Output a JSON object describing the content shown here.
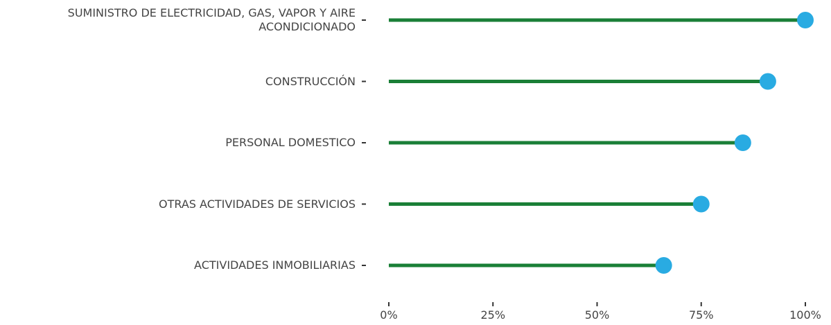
{
  "chart_data": {
    "type": "lollipop",
    "categories": [
      "SUMINISTRO DE ELECTRICIDAD, GAS, VAPOR Y AIRE\nACONDICIONADO",
      "CONSTRUCCIÓN",
      "PERSONAL DOMESTICO",
      "OTRAS ACTIVIDADES DE SERVICIOS",
      "ACTIVIDADES INMOBILIARIAS"
    ],
    "values": [
      100,
      91,
      85,
      75,
      66
    ],
    "color": "#1a7f37",
    "point_color": "#29abe2",
    "xlim": [
      0,
      100
    ],
    "xticks": [
      {
        "value": 0,
        "label": "0%"
      },
      {
        "value": 25,
        "label": "25%"
      },
      {
        "value": 50,
        "label": "50%"
      },
      {
        "value": 75,
        "label": "75%"
      },
      {
        "value": 100,
        "label": "100%"
      }
    ],
    "grid": false
  }
}
